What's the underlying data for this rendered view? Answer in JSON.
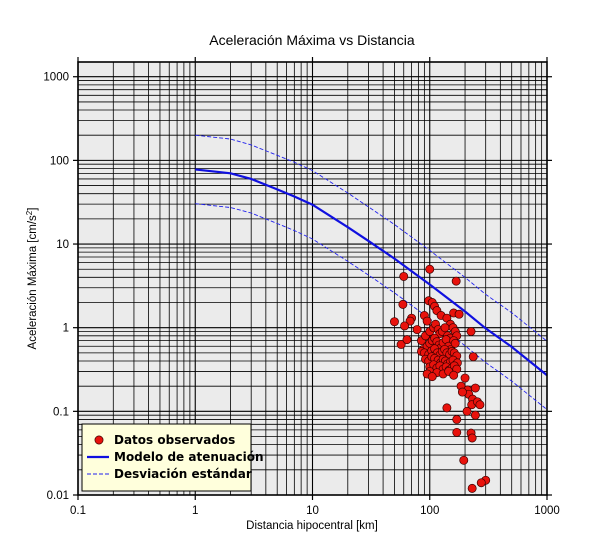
{
  "chart_data": {
    "type": "scatter",
    "title": "Aceleración Máxima vs Distancia",
    "xlabel": "Distancia hipocentral [km]",
    "ylabel": "Aceleración Máxima [cm/s",
    "ylabel_sup": "2",
    "ylabel_end": "]",
    "xscale": "log",
    "yscale": "log",
    "xlim": [
      0.1,
      1000
    ],
    "ylim": [
      0.01,
      1500
    ],
    "grid": true,
    "legend_position": "bottom-left",
    "x_tick_labels": [
      "0.1",
      "1",
      "10",
      "100",
      "1000"
    ],
    "y_tick_labels": [
      "0.01",
      "0.1",
      "1",
      "10",
      "100",
      "1000"
    ],
    "colors": {
      "observed": "#e8120c",
      "model": "#1010e0",
      "deviation": "#2222ee",
      "legend_bg": "#ffffdc",
      "plot_bg": "#ebebeb"
    },
    "legend": [
      {
        "label": "Datos observados",
        "kind": "marker"
      },
      {
        "label": "Modelo de atenuación",
        "kind": "line"
      },
      {
        "label": "Desviación estándar",
        "kind": "dashed"
      }
    ],
    "series": [
      {
        "name": "Datos observados",
        "kind": "scatter",
        "x": [
          100,
          60,
          168,
          59,
          70,
          68,
          50,
          61,
          57,
          64,
          78,
          90,
          95,
          98,
          105,
          110,
          115,
          125,
          140,
          150,
          160,
          178,
          85,
          92,
          100,
          108,
          112,
          118,
          122,
          128,
          135,
          142,
          150,
          158,
          165,
          170,
          88,
          95,
          100,
          105,
          110,
          115,
          120,
          125,
          130,
          138,
          145,
          152,
          160,
          165,
          85,
          90,
          98,
          104,
          110,
          116,
          122,
          128,
          134,
          140,
          148,
          155,
          162,
          170,
          92,
          98,
          104,
          110,
          118,
          124,
          130,
          136,
          142,
          150,
          158,
          166,
          172,
          100,
          108,
          115,
          122,
          130,
          138,
          146,
          155,
          162,
          170,
          100,
          115,
          130,
          145,
          160,
          95,
          105,
          235,
          225,
          185,
          200,
          210,
          215,
          232,
          245,
          190,
          228,
          208,
          170,
          140,
          255,
          268,
          225,
          230,
          170,
          195,
          245,
          300,
          275,
          230
        ],
        "y": [
          5.0,
          4.1,
          3.6,
          1.9,
          1.3,
          1.2,
          1.18,
          1.05,
          0.63,
          0.72,
          0.95,
          1.4,
          1.2,
          2.1,
          2.0,
          1.8,
          1.6,
          1.4,
          1.3,
          1.1,
          1.5,
          1.45,
          0.7,
          0.8,
          0.9,
          1.0,
          1.1,
          0.95,
          0.85,
          0.9,
          1.0,
          0.8,
          0.75,
          1.0,
          0.9,
          0.8,
          0.55,
          0.6,
          0.65,
          0.7,
          0.75,
          0.68,
          0.62,
          0.58,
          0.66,
          0.72,
          0.6,
          0.55,
          0.7,
          0.65,
          0.52,
          0.5,
          0.48,
          0.53,
          0.56,
          0.5,
          0.47,
          0.52,
          0.55,
          0.5,
          0.48,
          0.52,
          0.5,
          0.46,
          0.42,
          0.4,
          0.45,
          0.43,
          0.41,
          0.38,
          0.42,
          0.4,
          0.37,
          0.39,
          0.41,
          0.36,
          0.38,
          0.34,
          0.36,
          0.33,
          0.35,
          0.32,
          0.34,
          0.31,
          0.33,
          0.35,
          0.32,
          0.3,
          0.29,
          0.28,
          0.3,
          0.27,
          0.28,
          0.26,
          0.45,
          0.9,
          0.2,
          0.25,
          0.18,
          0.16,
          0.14,
          0.19,
          0.17,
          0.12,
          0.1,
          0.08,
          0.11,
          0.13,
          0.12,
          0.055,
          0.048,
          0.056,
          0.026,
          0.09,
          0.015,
          0.014,
          0.012
        ]
      },
      {
        "name": "Modelo de atenuación",
        "kind": "line",
        "x": [
          1,
          2,
          3,
          5,
          7,
          10,
          20,
          30,
          50,
          100,
          200,
          300,
          500,
          1000
        ],
        "y": [
          78,
          70,
          60,
          45,
          37,
          29.5,
          15.9,
          10.9,
          6.69,
          3.28,
          1.56,
          0.98,
          0.59,
          0.27
        ]
      },
      {
        "name": "Desviación estándar",
        "kind": "dashed",
        "x": [
          1,
          2,
          3,
          5,
          7,
          10,
          20,
          30,
          50,
          100,
          200,
          300,
          500,
          1000
        ],
        "y": [
          200,
          180,
          153,
          115,
          95,
          75.5,
          40.7,
          27.8,
          17.1,
          8.39,
          3.99,
          2.5,
          1.51,
          0.69
        ]
      },
      {
        "name": "Desviación estándar",
        "kind": "dashed",
        "x": [
          1,
          2,
          3,
          5,
          7,
          10,
          20,
          30,
          50,
          100,
          200,
          300,
          500,
          1000
        ],
        "y": [
          30.4,
          27.3,
          23.5,
          17.6,
          14.5,
          11.5,
          6.21,
          4.26,
          2.61,
          1.28,
          0.609,
          0.383,
          0.23,
          0.105
        ]
      }
    ]
  }
}
